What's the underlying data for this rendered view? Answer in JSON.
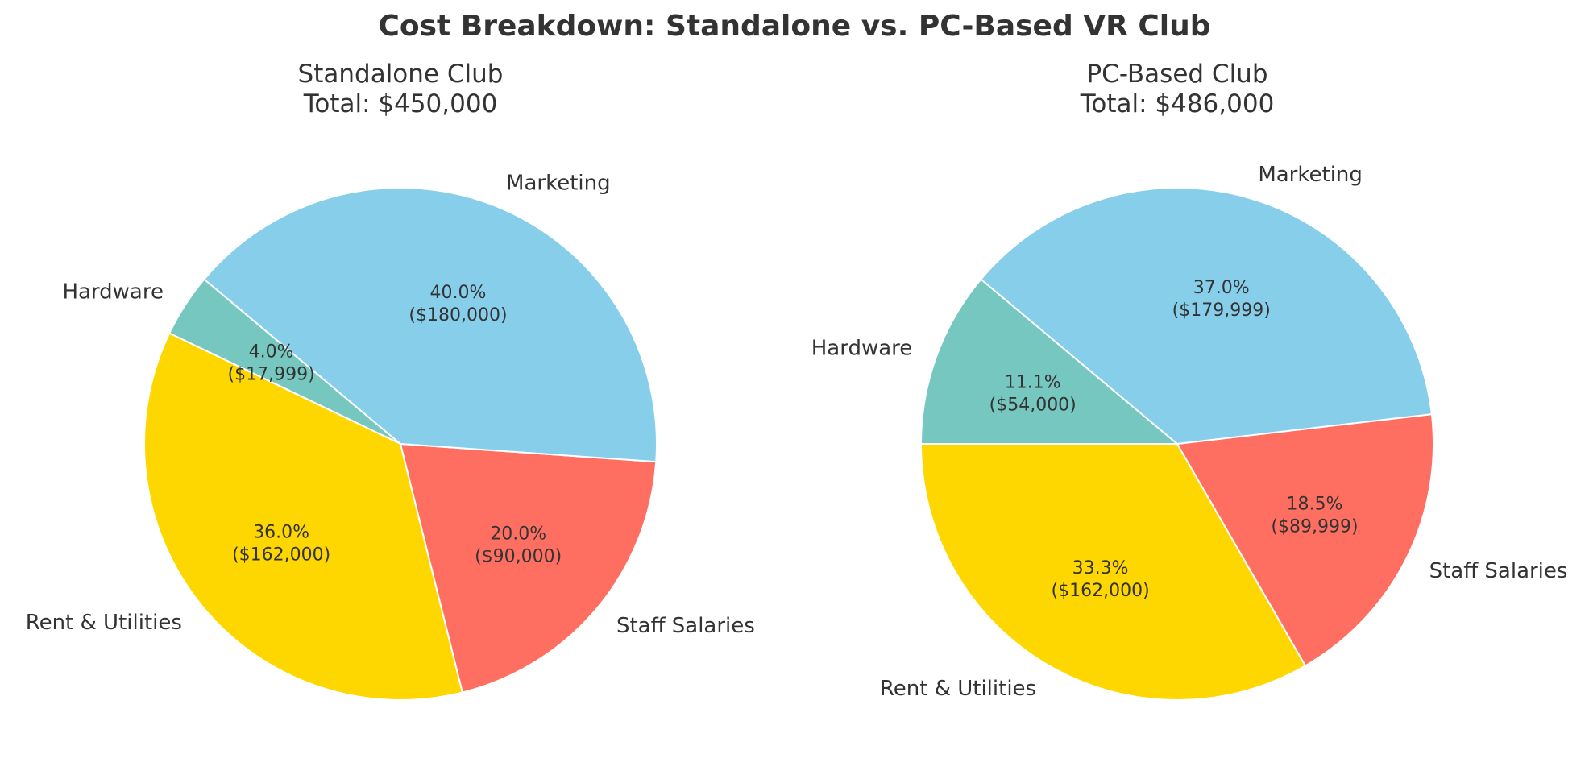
{
  "chart_data": [
    {
      "type": "pie",
      "suptitle": "Cost Breakdown: Standalone vs. PC-Based VR Club",
      "title": [
        "Standalone Club",
        "Total: $450,000"
      ],
      "startangle": 140,
      "direction": "counterclockwise",
      "categories": [
        "Hardware",
        "Rent & Utilities",
        "Staff Salaries",
        "Marketing"
      ],
      "values": [
        17999,
        162000,
        90000,
        180000
      ],
      "pct_labels": [
        "4.0%",
        "36.0%",
        "20.0%",
        "40.0%"
      ],
      "value_labels": [
        "($17,999)",
        "($162,000)",
        "($90,000)",
        "($180,000)"
      ],
      "colors": [
        "#76c7c0",
        "#ffd700",
        "#ff6f61",
        "#87ceeb"
      ]
    },
    {
      "type": "pie",
      "title": [
        "PC-Based Club",
        "Total: $486,000"
      ],
      "startangle": 140,
      "direction": "counterclockwise",
      "categories": [
        "Hardware",
        "Rent & Utilities",
        "Staff Salaries",
        "Marketing"
      ],
      "values": [
        54000,
        162000,
        89999,
        179999
      ],
      "pct_labels": [
        "11.1%",
        "33.3%",
        "18.5%",
        "37.0%"
      ],
      "value_labels": [
        "($54,000)",
        "($162,000)",
        "($89,999)",
        "($179,999)"
      ],
      "colors": [
        "#76c7c0",
        "#ffd700",
        "#ff6f61",
        "#87ceeb"
      ]
    }
  ]
}
